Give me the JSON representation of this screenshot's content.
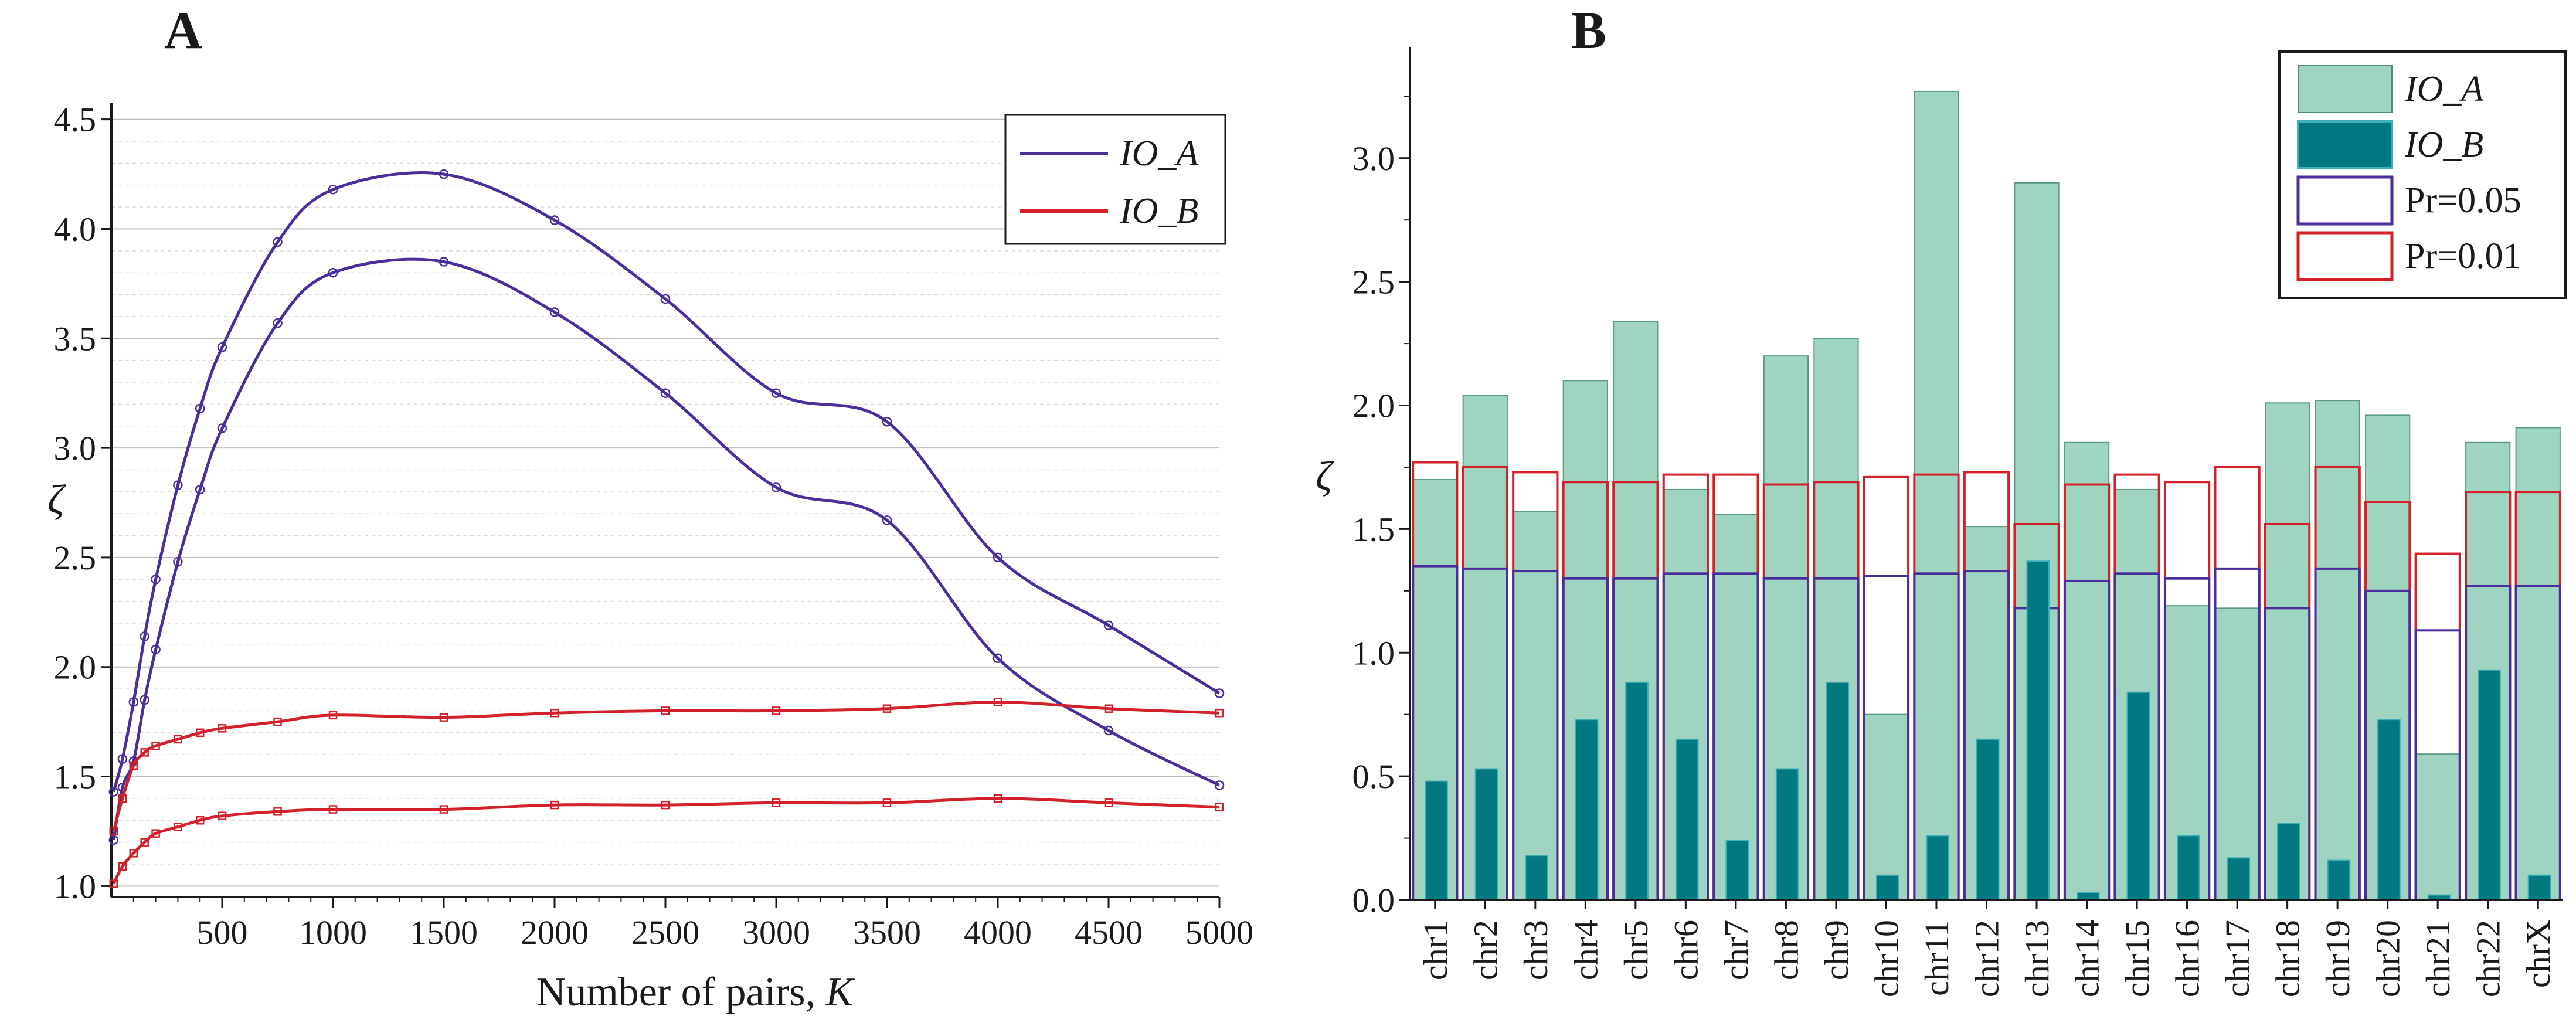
{
  "chart_data": [
    {
      "panel": "A",
      "type": "line",
      "xlabel": "Number of pairs, ",
      "xlabel_var": "K",
      "ylabel": "ζ",
      "xlim": [
        0,
        5000
      ],
      "ylim": [
        0.95,
        4.55
      ],
      "xticks": [
        500,
        1000,
        1500,
        2000,
        2500,
        3000,
        3500,
        4000,
        4500,
        5000
      ],
      "yticks": [
        1.0,
        1.5,
        2.0,
        2.5,
        3.0,
        3.5,
        4.0,
        4.5
      ],
      "grid": "horizontal-dotted",
      "legend": {
        "position": "top-right",
        "items": [
          "IO_A",
          "IO_B"
        ]
      },
      "colors": {
        "IO_A": "#4b2e9a",
        "IO_B": "#d4202a"
      },
      "x": [
        10,
        50,
        100,
        150,
        200,
        300,
        400,
        500,
        750,
        1000,
        1500,
        2000,
        2500,
        3000,
        3500,
        4000,
        4500,
        5000
      ],
      "series": [
        {
          "name": "IO_A",
          "curve": "Pr=0.01",
          "values": [
            1.43,
            1.58,
            1.84,
            2.14,
            2.4,
            2.83,
            3.18,
            3.46,
            3.94,
            4.18,
            4.25,
            4.04,
            3.68,
            3.25,
            3.12,
            2.5,
            2.19,
            1.88
          ]
        },
        {
          "name": "IO_A",
          "curve": "Pr=0.05",
          "values": [
            1.21,
            1.45,
            1.57,
            1.85,
            2.08,
            2.48,
            2.81,
            3.09,
            3.57,
            3.8,
            3.85,
            3.62,
            3.25,
            2.82,
            2.67,
            2.04,
            1.71,
            1.46
          ]
        },
        {
          "name": "IO_B",
          "curve": "Pr=0.01",
          "values": [
            1.25,
            1.4,
            1.55,
            1.61,
            1.64,
            1.67,
            1.7,
            1.72,
            1.75,
            1.78,
            1.77,
            1.79,
            1.8,
            1.8,
            1.81,
            1.84,
            1.81,
            1.79
          ]
        },
        {
          "name": "IO_B",
          "curve": "Pr=0.05",
          "values": [
            1.01,
            1.09,
            1.15,
            1.2,
            1.24,
            1.27,
            1.3,
            1.32,
            1.34,
            1.35,
            1.35,
            1.37,
            1.37,
            1.38,
            1.38,
            1.4,
            1.38,
            1.36
          ]
        }
      ]
    },
    {
      "panel": "B",
      "type": "bar",
      "ylabel": "ζ",
      "ylim": [
        0,
        3.45
      ],
      "yticks": [
        0.0,
        0.5,
        1.0,
        1.5,
        2.0,
        2.5,
        3.0
      ],
      "legend": {
        "position": "top-right",
        "items": [
          "IO_A",
          "IO_B",
          "Pr=0.05",
          "Pr=0.01"
        ]
      },
      "colors": {
        "IO_A": "#9fd4c0",
        "IO_B": "#007a80",
        "Pr=0.05": "#4b2e9a",
        "Pr=0.01": "#d4202a"
      },
      "categories": [
        "chr1",
        "chr2",
        "chr3",
        "chr4",
        "chr5",
        "chr6",
        "chr7",
        "chr8",
        "chr9",
        "chr10",
        "chr11",
        "chr12",
        "chr13",
        "chr14",
        "chr15",
        "chr16",
        "chr17",
        "chr18",
        "chr19",
        "chr20",
        "chr21",
        "chr22",
        "chrX"
      ],
      "series": [
        {
          "name": "IO_A",
          "values": [
            1.7,
            2.04,
            1.57,
            2.1,
            2.34,
            1.66,
            1.56,
            2.2,
            2.27,
            0.75,
            3.27,
            1.51,
            2.9,
            1.85,
            1.66,
            1.19,
            1.18,
            2.01,
            2.02,
            1.96,
            0.59,
            1.85,
            1.91
          ]
        },
        {
          "name": "IO_B",
          "values": [
            0.48,
            0.53,
            0.18,
            0.73,
            0.88,
            0.65,
            0.24,
            0.53,
            0.88,
            0.1,
            0.26,
            0.65,
            1.37,
            0.03,
            0.84,
            0.26,
            0.17,
            0.31,
            0.16,
            0.73,
            0.02,
            0.93,
            0.1
          ]
        },
        {
          "name": "Pr=0.05",
          "values": [
            1.35,
            1.34,
            1.33,
            1.3,
            1.3,
            1.32,
            1.32,
            1.3,
            1.3,
            1.31,
            1.32,
            1.33,
            1.18,
            1.29,
            1.32,
            1.3,
            1.34,
            1.18,
            1.34,
            1.25,
            1.09,
            1.27,
            1.27
          ]
        },
        {
          "name": "Pr=0.01",
          "values": [
            1.77,
            1.75,
            1.73,
            1.69,
            1.69,
            1.72,
            1.72,
            1.68,
            1.69,
            1.71,
            1.72,
            1.73,
            1.52,
            1.68,
            1.72,
            1.69,
            1.75,
            1.52,
            1.75,
            1.61,
            1.4,
            1.65,
            1.65
          ]
        }
      ]
    }
  ]
}
